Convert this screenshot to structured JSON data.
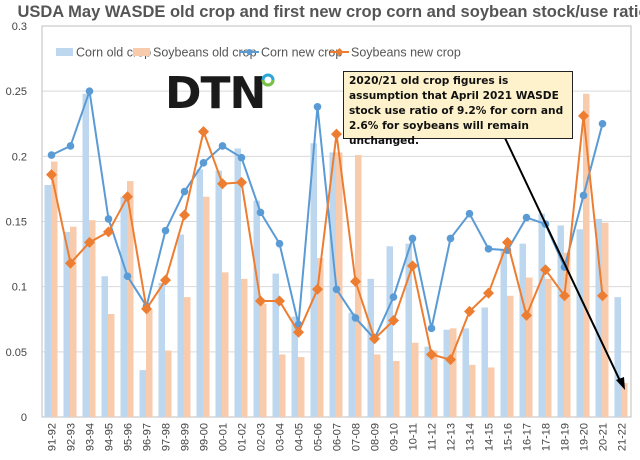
{
  "chart_data": {
    "type": "bar+line",
    "title": "USDA May WASDE old crop and first new crop corn and soybean stock/use ratio",
    "xlabel": "",
    "ylabel": "",
    "ylim": [
      0,
      0.3
    ],
    "yticks": [
      "0",
      "0.05",
      "0.1",
      "0.15",
      "0.2",
      "0.25",
      "0.3"
    ],
    "grid": true,
    "legend_position": "top",
    "categories": [
      "91-92",
      "92-93",
      "93-94",
      "94-95",
      "95-96",
      "96-97",
      "97-98",
      "98-99",
      "99-00",
      "00-01",
      "01-02",
      "02-03",
      "03-04",
      "04-05",
      "05-06",
      "06-07",
      "07-08",
      "08-09",
      "09-10",
      "10-11",
      "11-12",
      "12-13",
      "13-14",
      "14-15",
      "15-16",
      "16-17",
      "17-18",
      "18-19",
      "19-20",
      "20-21",
      "21-22"
    ],
    "series": [
      {
        "name": "Corn old crop",
        "kind": "bar",
        "color": "#bdd7ee",
        "values": [
          0.178,
          0.142,
          0.248,
          0.108,
          0.169,
          0.036,
          0.103,
          0.14,
          0.19,
          0.189,
          0.206,
          0.166,
          0.11,
          0.077,
          0.21,
          0.203,
          0.08,
          0.106,
          0.131,
          0.133,
          0.054,
          0.067,
          0.068,
          0.084,
          0.128,
          0.133,
          0.156,
          0.147,
          0.144,
          0.152,
          0.092
        ]
      },
      {
        "name": "Soybeans old crop",
        "kind": "bar",
        "color": "#f8cbad",
        "values": [
          0.196,
          0.146,
          0.151,
          0.079,
          0.181,
          0.083,
          0.051,
          0.092,
          0.169,
          0.111,
          0.106,
          0.087,
          0.048,
          0.046,
          0.122,
          0.203,
          0.201,
          0.048,
          0.043,
          0.057,
          0.051,
          0.068,
          0.04,
          0.038,
          0.093,
          0.107,
          0.106,
          0.126,
          0.248,
          0.149,
          0.026
        ]
      },
      {
        "name": "Corn new crop",
        "kind": "line",
        "marker": "circle",
        "color": "#5b9bd5",
        "values": [
          0.201,
          0.208,
          0.25,
          0.152,
          0.108,
          0.085,
          0.143,
          0.173,
          0.195,
          0.208,
          0.199,
          0.157,
          0.133,
          0.071,
          0.238,
          0.098,
          0.076,
          0.06,
          0.092,
          0.137,
          0.068,
          0.137,
          0.156,
          0.129,
          0.128,
          0.153,
          0.148,
          0.115,
          0.17,
          0.225,
          null
        ]
      },
      {
        "name": "Soybeans new crop",
        "kind": "line",
        "marker": "diamond",
        "color": "#ed7d31",
        "values": [
          0.186,
          0.118,
          0.134,
          0.142,
          0.169,
          0.083,
          0.105,
          0.155,
          0.219,
          0.179,
          0.18,
          0.089,
          0.089,
          0.065,
          0.098,
          0.217,
          0.104,
          0.06,
          0.074,
          0.116,
          0.048,
          0.044,
          0.081,
          0.095,
          0.134,
          0.078,
          0.113,
          0.093,
          0.231,
          0.093,
          null
        ]
      }
    ],
    "annotation": "2020/21 old crop figures is assumption that April 2021 WASDE stock use ratio of 9.2% for corn and 2.6% for soybeans will remain unchanged.",
    "logo_text": "DTN"
  }
}
